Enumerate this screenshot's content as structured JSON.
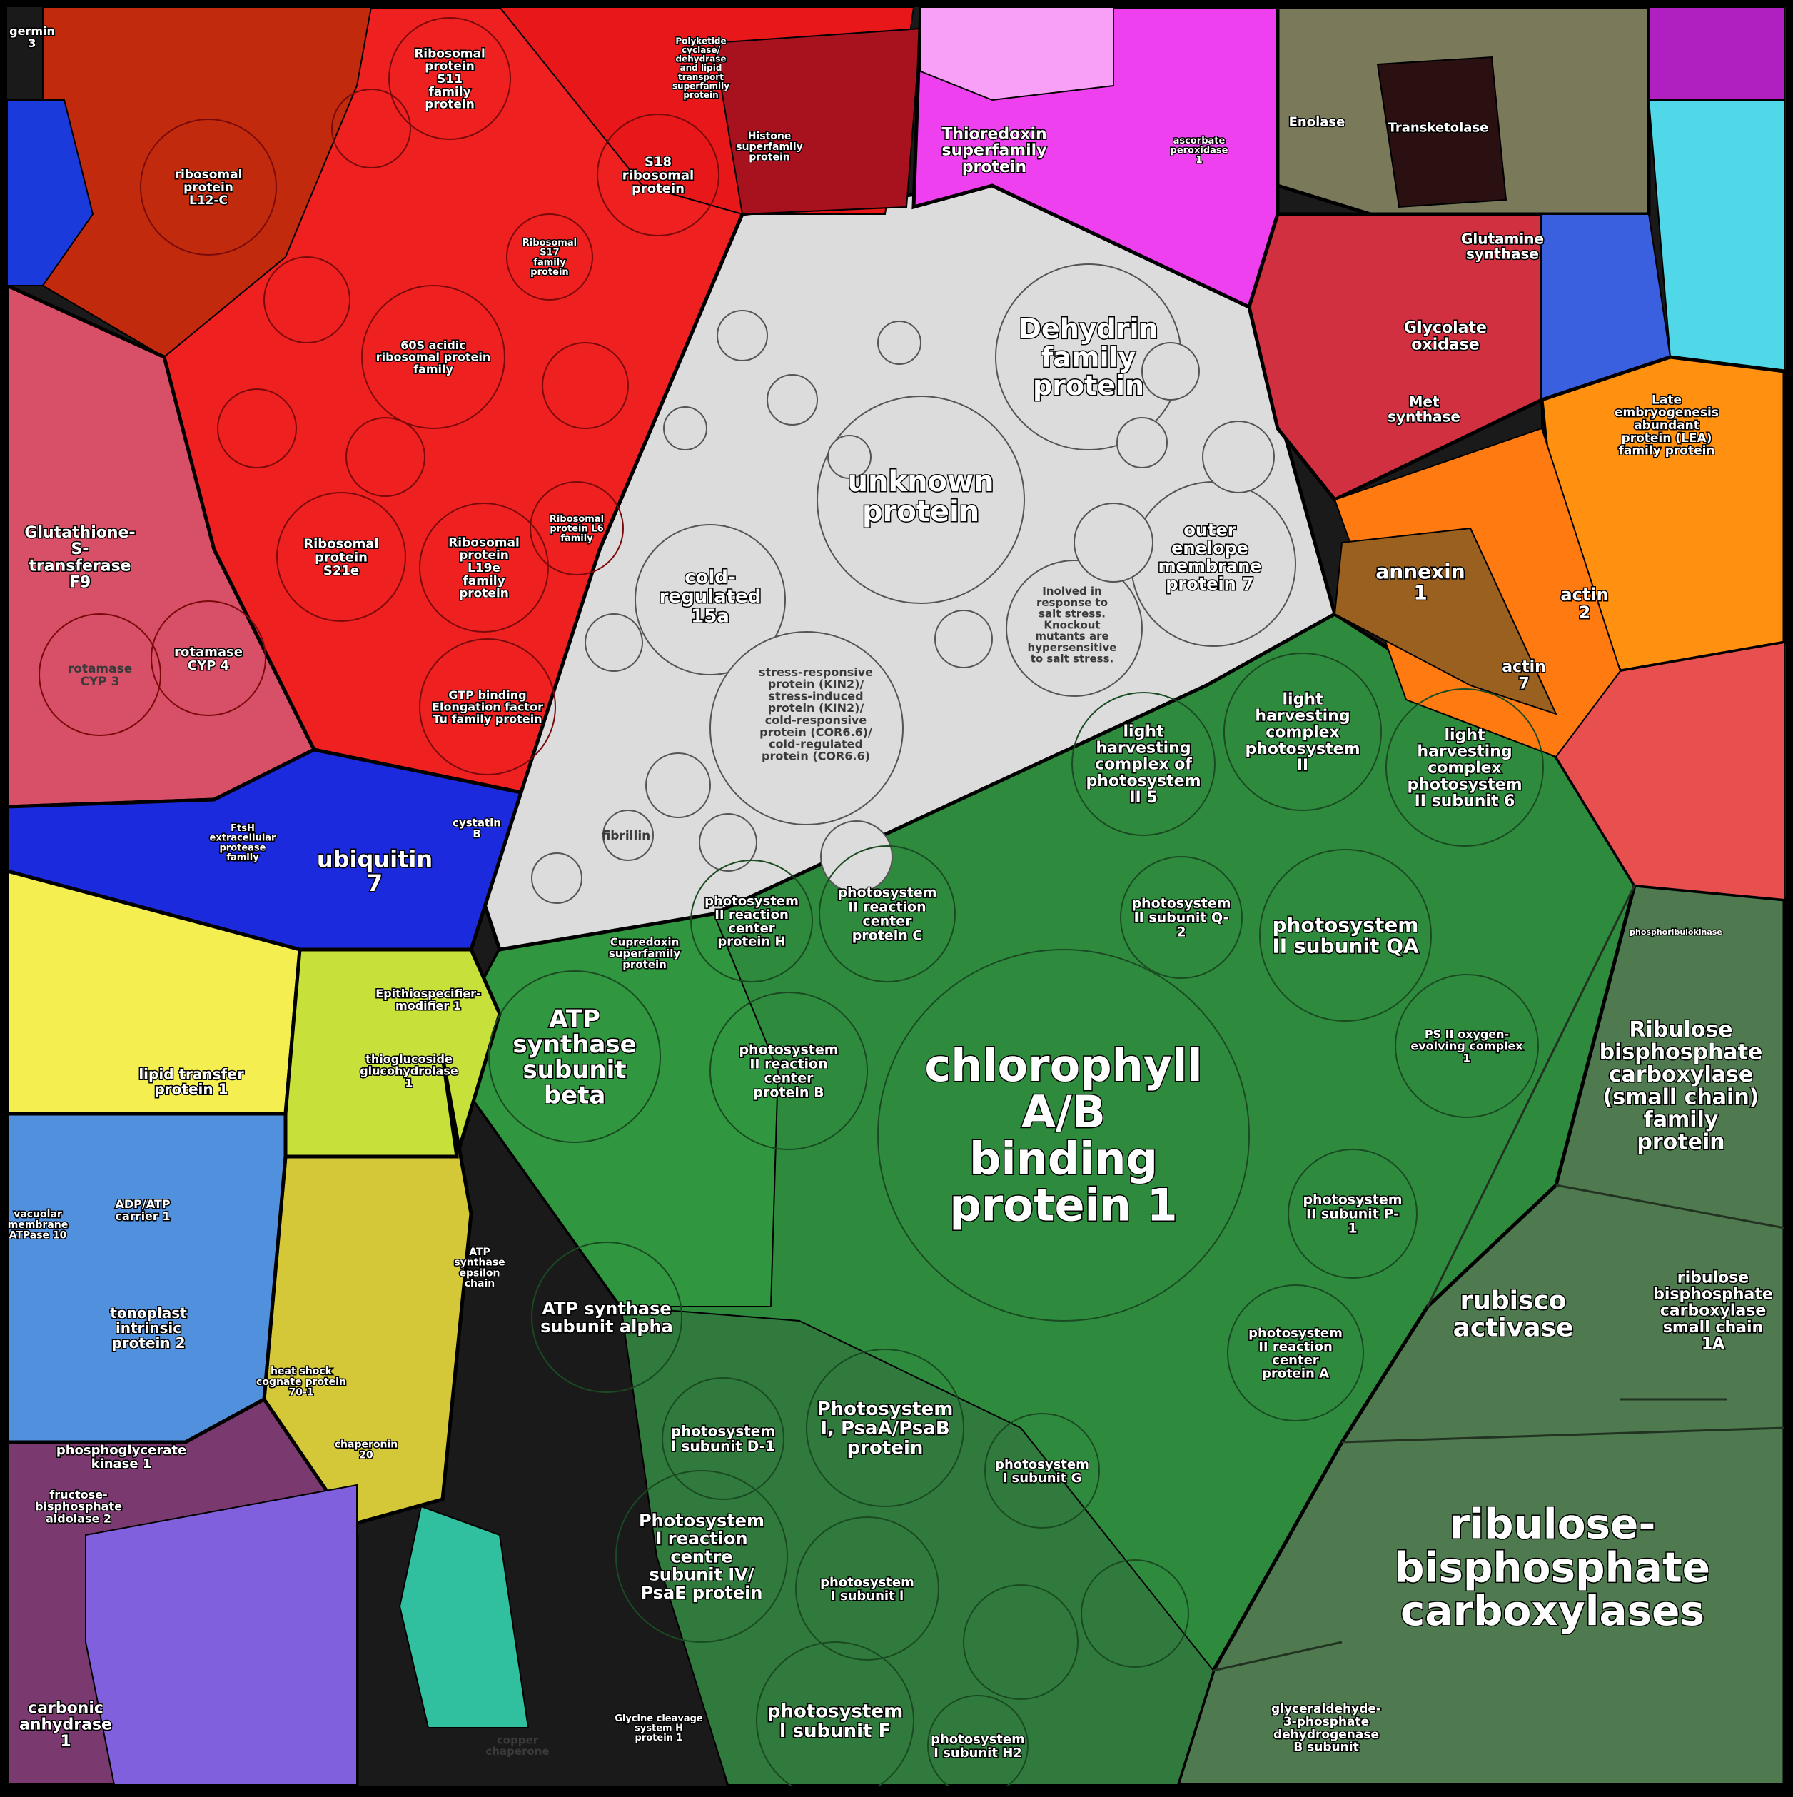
{
  "colors": {
    "ribosomal": "#ee2020",
    "ribosomal_dark": "#c22a0e",
    "unknown": "#dcdcdc",
    "photosynthesis": "#2e8b3e",
    "rubisco": "#4f7a4f",
    "glutathione": "#d85068",
    "thioredoxin": "#ee40ee",
    "protease": "#1a2adc",
    "chaperone": "#d4c838",
    "transport": "#5090dc",
    "glycolysis": "#7a3a70",
    "annexin": "#9a6020",
    "lea": "#ff9010",
    "enolase": "#8a7a5a",
    "transketolase": "#2a1010"
  },
  "labels": [
    {
      "id": "chl",
      "text": [
        "chlorophyll",
        "A/B",
        "binding",
        "protein 1"
      ],
      "fs": 62,
      "style": "light"
    },
    {
      "id": "rbc",
      "text": [
        "ribulose-",
        "bisphosphate",
        "carboxylases"
      ],
      "fs": 58,
      "style": "light"
    },
    {
      "id": "unk",
      "text": [
        "unknown",
        "protein"
      ],
      "fs": 40,
      "style": "light"
    },
    {
      "id": "dhn",
      "text": [
        "Dehydrin",
        "family",
        "protein"
      ],
      "fs": 38,
      "style": "light"
    },
    {
      "id": "atpb",
      "text": [
        "ATP",
        "synthase",
        "subunit",
        "beta"
      ],
      "fs": 34,
      "style": "light"
    },
    {
      "id": "rbcs",
      "text": [
        "Ribulose",
        "bisphosphate",
        "carboxylase",
        "(small chain)",
        "family",
        "protein"
      ],
      "fs": 30,
      "style": "light"
    },
    {
      "id": "rca",
      "text": [
        "rubisco",
        "activase"
      ],
      "fs": 36,
      "style": "light"
    },
    {
      "id": "rbcs1a",
      "text": [
        "ribulose",
        "bisphosphate",
        "carboxylase",
        "small chain",
        "1A"
      ],
      "fs": 22,
      "style": "light"
    },
    {
      "id": "ubq",
      "text": [
        "ubiquitin",
        "7"
      ],
      "fs": 32,
      "style": "light"
    },
    {
      "id": "cor15",
      "text": [
        "cold-",
        "regulated",
        "15a"
      ],
      "fs": 26,
      "style": "light"
    },
    {
      "id": "oep7",
      "text": [
        "outer",
        "enelope",
        "membrane",
        "protein 7"
      ],
      "fs": 24,
      "style": "light"
    },
    {
      "id": "gstf9",
      "text": [
        "Glutathione-",
        "S-",
        "transferase",
        "F9"
      ],
      "fs": 22,
      "style": "light"
    },
    {
      "id": "psbqa",
      "text": [
        "photosystem",
        "II subunit QA"
      ],
      "fs": 28,
      "style": "light"
    },
    {
      "id": "atpa",
      "text": [
        "ATP synthase",
        "subunit alpha"
      ],
      "fs": 24,
      "style": "light"
    },
    {
      "id": "psaab",
      "text": [
        "Photosystem",
        "I, PsaA/PsaB",
        "protein"
      ],
      "fs": 26,
      "style": "light"
    },
    {
      "id": "psae",
      "text": [
        "Photosystem",
        "I reaction",
        "centre",
        "subunit IV/",
        "PsaE protein"
      ],
      "fs": 24,
      "style": "light"
    },
    {
      "id": "psaf",
      "text": [
        "photosystem",
        "I subunit F"
      ],
      "fs": 26,
      "style": "light"
    },
    {
      "id": "ann1",
      "text": [
        "annexin",
        "1"
      ],
      "fs": 28,
      "style": "light"
    },
    {
      "id": "actin2",
      "text": [
        "actin",
        "2"
      ],
      "fs": 24,
      "style": "light"
    },
    {
      "id": "actin7",
      "text": [
        "actin",
        "7"
      ],
      "fs": 22,
      "style": "light"
    },
    {
      "id": "thio",
      "text": [
        "Thioredoxin",
        "superfamily",
        "protein"
      ],
      "fs": 22,
      "style": "light"
    },
    {
      "id": "tkl",
      "text": [
        "Transketolase"
      ],
      "fs": 18,
      "style": "light"
    },
    {
      "id": "eno",
      "text": [
        "Enolase"
      ],
      "fs": 18,
      "style": "light"
    },
    {
      "id": "gox",
      "text": [
        "Glycolate",
        "oxidase"
      ],
      "fs": 22,
      "style": "light"
    },
    {
      "id": "gs",
      "text": [
        "Glutamine",
        "synthase"
      ],
      "fs": 20,
      "style": "light"
    },
    {
      "id": "ms",
      "text": [
        "Met",
        "synthase"
      ],
      "fs": 20,
      "style": "light"
    },
    {
      "id": "lea",
      "text": [
        "Late",
        "embryogenesis",
        "abundant",
        "protein (LEA)",
        "family protein"
      ],
      "fs": 17,
      "style": "light"
    },
    {
      "id": "lhcb6",
      "text": [
        "light",
        "harvesting",
        "complex",
        "photosystem",
        "II subunit 6"
      ],
      "fs": 22,
      "style": "light"
    },
    {
      "id": "lhcb",
      "text": [
        "light",
        "harvesting",
        "complex",
        "photosystem",
        "II"
      ],
      "fs": 22,
      "style": "light"
    },
    {
      "id": "lhcb5",
      "text": [
        "light",
        "harvesting",
        "complex of",
        "photosystem",
        "II 5"
      ],
      "fs": 22,
      "style": "light"
    },
    {
      "id": "psbc",
      "text": [
        "photosystem",
        "II reaction",
        "center",
        "protein C"
      ],
      "fs": 19,
      "style": "light"
    },
    {
      "id": "psbh",
      "text": [
        "photosystem",
        "II reaction",
        "center",
        "protein H"
      ],
      "fs": 18,
      "style": "light"
    },
    {
      "id": "psbb",
      "text": [
        "photosystem",
        "II reaction",
        "center",
        "protein B"
      ],
      "fs": 19,
      "style": "light"
    },
    {
      "id": "psbq2",
      "text": [
        "photosystem",
        "II subunit Q-",
        "2"
      ],
      "fs": 19,
      "style": "light"
    },
    {
      "id": "psbp1",
      "text": [
        "photosystem",
        "II subunit P-",
        "1"
      ],
      "fs": 19,
      "style": "light"
    },
    {
      "id": "psba",
      "text": [
        "photosystem",
        "II reaction",
        "center",
        "protein A"
      ],
      "fs": 18,
      "style": "light"
    },
    {
      "id": "psad1",
      "text": [
        "photosystem",
        "I subunit D-1"
      ],
      "fs": 20,
      "style": "light"
    },
    {
      "id": "psag",
      "text": [
        "photosystem",
        "I subunit G"
      ],
      "fs": 18,
      "style": "light"
    },
    {
      "id": "psal",
      "text": [
        "photosystem",
        "I subunit l"
      ],
      "fs": 18,
      "style": "light"
    },
    {
      "id": "psah2",
      "text": [
        "photosystem",
        "I subunit H2"
      ],
      "fs": 18,
      "style": "light"
    },
    {
      "id": "gapa",
      "text": [
        "glyceraldehyde-",
        "3-phosphate",
        "dehydrogenase",
        "B subunit"
      ],
      "fs": 17,
      "style": "light"
    },
    {
      "id": "s21e",
      "text": [
        "Ribosomal",
        "protein",
        "S21e"
      ],
      "fs": 18,
      "style": "light"
    },
    {
      "id": "s18",
      "text": [
        "S18",
        "ribosomal",
        "protein"
      ],
      "fs": 18,
      "style": "light"
    },
    {
      "id": "rbl12",
      "text": [
        "ribosomal",
        "protein",
        "L12-C"
      ],
      "fs": 17,
      "style": "light"
    },
    {
      "id": "l19e",
      "text": [
        "Ribosomal",
        "protein",
        "L19e",
        "family",
        "protein"
      ],
      "fs": 17,
      "style": "light"
    },
    {
      "id": "s11",
      "text": [
        "Ribosomal",
        "protein",
        "S11",
        "family",
        "protein"
      ],
      "fs": 17,
      "style": "light"
    },
    {
      "id": "acidic",
      "text": [
        "60S acidic",
        "ribosomal protein",
        "family"
      ],
      "fs": 16,
      "style": "light"
    },
    {
      "id": "cyp4",
      "text": [
        "rotamase",
        "CYP 4"
      ],
      "fs": 18,
      "style": "light"
    },
    {
      "id": "cyp3",
      "text": [
        "rotamase",
        "CYP 3"
      ],
      "fs": 17,
      "style": "dark"
    },
    {
      "id": "gtp",
      "text": [
        "GTP binding",
        "Elongation factor",
        "Tu family protein"
      ],
      "fs": 16,
      "style": "light"
    },
    {
      "id": "pgk",
      "text": [
        "phosphoglycerate",
        "kinase 1"
      ],
      "fs": 18,
      "style": "light"
    },
    {
      "id": "fba2",
      "text": [
        "fructose-",
        "bisphosphate",
        "aldolase 2"
      ],
      "fs": 16,
      "style": "light"
    },
    {
      "id": "ca1",
      "text": [
        "carbonic",
        "anhydrase",
        "1"
      ],
      "fs": 22,
      "style": "light"
    },
    {
      "id": "tip2",
      "text": [
        "tonoplast",
        "intrinsic",
        "protein 2"
      ],
      "fs": 20,
      "style": "light"
    },
    {
      "id": "ltp1",
      "text": [
        "lipid transfer",
        "protein 1"
      ],
      "fs": 20,
      "style": "lightdark"
    },
    {
      "id": "esm1",
      "text": [
        "Epithiospecifier-",
        "modifier 1"
      ],
      "fs": 16,
      "style": "light"
    },
    {
      "id": "tgg1",
      "text": [
        "thioglucoside",
        "glucohydrolase",
        "1"
      ],
      "fs": 16,
      "style": "light"
    },
    {
      "id": "aac1",
      "text": [
        "ADP/ATP",
        "carrier 1"
      ],
      "fs": 16,
      "style": "light"
    },
    {
      "id": "germin",
      "text": [
        "germin",
        "3"
      ],
      "fs": 16,
      "style": "light"
    },
    {
      "id": "stress",
      "text": [
        "stress-responsive",
        "protein (KIN2)/",
        "stress-induced",
        "protein (KIN2)/",
        "cold-responsive",
        "protein (COR6.6)/",
        "cold-regulated",
        "protein (COR6.6)"
      ],
      "fs": 16,
      "style": "dark"
    },
    {
      "id": "salt",
      "text": [
        "Inolved in",
        "response to",
        "salt stress.",
        "Knockout",
        "mutants are",
        "hypersensitive",
        "to salt stress."
      ],
      "fs": 15,
      "style": "dark"
    },
    {
      "id": "fibrillin",
      "text": [
        "fibrillin"
      ],
      "fs": 17,
      "style": "dark"
    },
    {
      "id": "vacatp",
      "text": [
        "vacuolar",
        "membrane",
        "ATPase 10"
      ],
      "fs": 14,
      "style": "light"
    },
    {
      "id": "copper",
      "text": [
        "copper",
        "chaperone"
      ],
      "fs": 15,
      "style": "dark"
    },
    {
      "id": "atpeps",
      "text": [
        "ATP",
        "synthase",
        "epsilon",
        "chain"
      ],
      "fs": 14,
      "style": "light"
    },
    {
      "id": "glydc",
      "text": [
        "Glycine cleavage",
        "system H",
        "protein 1"
      ],
      "fs": 13,
      "style": "light"
    },
    {
      "id": "oxy",
      "text": [
        "PS II oxygen-",
        "evolving complex",
        "1"
      ],
      "fs": 16,
      "style": "light"
    },
    {
      "id": "cupredoxin",
      "text": [
        "Cupredoxin",
        "superfamily",
        "protein"
      ],
      "fs": 15,
      "style": "light"
    },
    {
      "id": "hsc70",
      "text": [
        "heat shock",
        "cognate protein",
        "70-1"
      ],
      "fs": 14,
      "style": "light"
    },
    {
      "id": "chap20",
      "text": [
        "chaperonin",
        "20"
      ],
      "fs": 14,
      "style": "light"
    },
    {
      "id": "polyketide",
      "text": [
        "Polyketide",
        "cyclase/",
        "dehydrase",
        "and lipid",
        "transport",
        "superfamily",
        "protein"
      ],
      "fs": 12,
      "style": "light"
    },
    {
      "id": "histone",
      "text": [
        "Histone",
        "superfamily",
        "protein"
      ],
      "fs": 14,
      "style": "light"
    },
    {
      "id": "ascorbate",
      "text": [
        "ascorbate",
        "peroxidase",
        "1"
      ],
      "fs": 13,
      "style": "light"
    },
    {
      "id": "ftsh",
      "text": [
        "FtsH",
        "extracellular",
        "protease",
        "family"
      ],
      "fs": 13,
      "style": "light"
    },
    {
      "id": "cystatin",
      "text": [
        "cystatin",
        "B"
      ],
      "fs": 15,
      "style": "light"
    },
    {
      "id": "phosphoribulokinase",
      "text": [
        "phosphoribulokinase"
      ],
      "fs": 11,
      "style": "light"
    },
    {
      "id": "rpl6",
      "text": [
        "Ribosomal",
        "protein L6",
        "family"
      ],
      "fs": 13,
      "style": "light"
    },
    {
      "id": "s17",
      "text": [
        "Ribosomal",
        "S17",
        "family",
        "protein"
      ],
      "fs": 13,
      "style": "light"
    }
  ]
}
